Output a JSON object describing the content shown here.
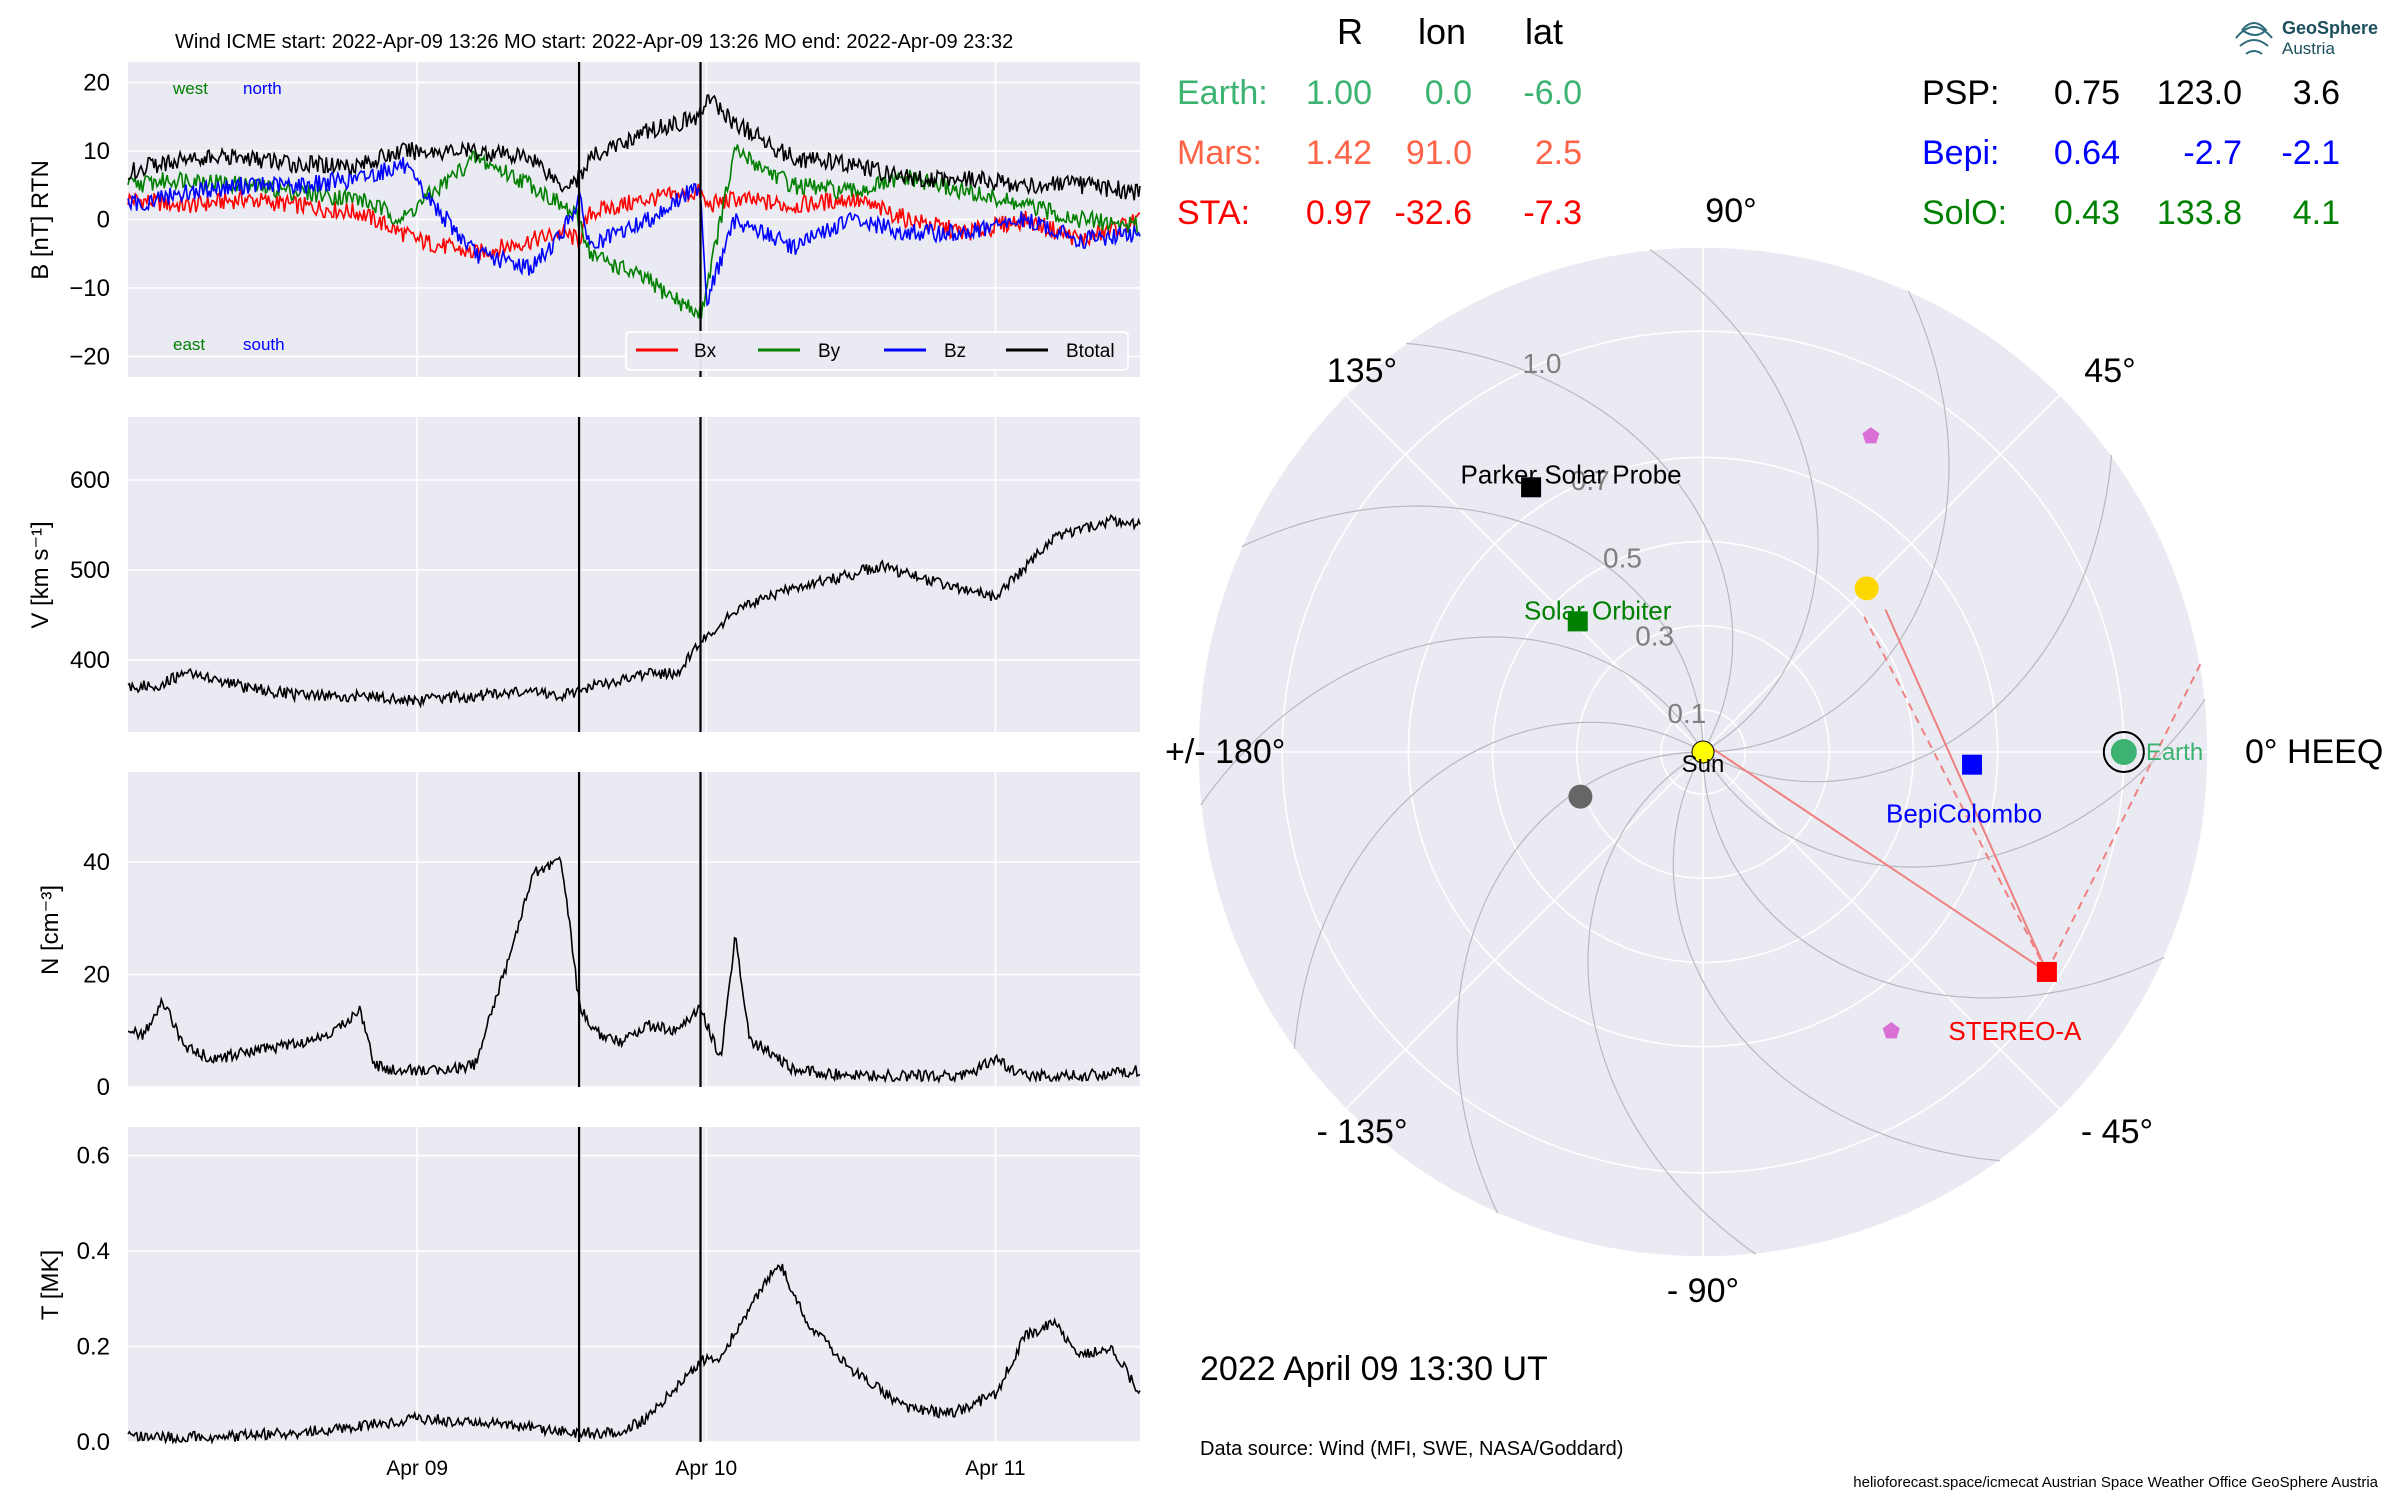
{
  "header": {
    "title": "Wind    ICME start: 2022-Apr-09 13:26   MO start: 2022-Apr-09 13:26   MO end: 2022-Apr-09 23:32"
  },
  "logo": {
    "line1": "GeoSphere",
    "line2": "Austria"
  },
  "footer": {
    "datetime": "2022 April 09  13:30 UT",
    "source": "Data source: Wind (MFI, SWE, NASA/Goddard)",
    "credits": "helioforecast.space/icmecat   Austrian Space Weather Office   GeoSphere Austria"
  },
  "table": {
    "headers": [
      "R",
      "lon",
      "lat"
    ],
    "left_rows": [
      {
        "name": "Earth:",
        "r": "1.00",
        "lon": "0.0",
        "lat": "-6.0",
        "color": "#3cb371"
      },
      {
        "name": "Mars:",
        "r": "1.42",
        "lon": "91.0",
        "lat": "2.5",
        "color": "#ff6347"
      },
      {
        "name": "STA:",
        "r": "0.97",
        "lon": "-32.6",
        "lat": "-7.3",
        "color": "#ff0000"
      }
    ],
    "right_rows": [
      {
        "name": "PSP:",
        "r": "0.75",
        "lon": "123.0",
        "lat": "3.6",
        "color": "#000000"
      },
      {
        "name": "Bepi:",
        "r": "0.64",
        "lon": "-2.7",
        "lat": "-2.1",
        "color": "#0000ff"
      },
      {
        "name": "SolO:",
        "r": "0.43",
        "lon": "133.8",
        "lat": "4.1",
        "color": "#008000"
      }
    ]
  },
  "chart_data": [
    {
      "type": "line",
      "panel": "magnetic-field",
      "ylabel": "B [nT] RTN",
      "ylim": [
        -23,
        23
      ],
      "yticks": [
        20,
        10,
        0,
        -10,
        -20
      ],
      "ytick_labels": [
        "20",
        "10",
        "0",
        "−10",
        "−20"
      ],
      "corner_labels": [
        {
          "text": "west",
          "color": "#008000",
          "corner": "top-left"
        },
        {
          "text": "north",
          "color": "#0000ff",
          "corner": "top-left"
        },
        {
          "text": "east",
          "color": "#008000",
          "corner": "bottom-left"
        },
        {
          "text": "south",
          "color": "#0000ff",
          "corner": "bottom-left"
        }
      ],
      "legend_position": "lower-right",
      "x_unit": "days since 2022-Apr-08 00:00",
      "x": [
        0.0,
        0.2,
        0.4,
        0.6,
        0.8,
        0.95,
        1.0,
        1.2,
        1.4,
        1.5,
        1.56,
        1.6,
        1.8,
        1.98,
        2.0,
        2.1,
        2.3,
        2.5,
        2.7,
        2.9,
        3.1,
        3.3,
        3.5
      ],
      "series": [
        {
          "name": "Bx",
          "color": "#ff0000",
          "values": [
            3,
            2,
            3,
            2,
            1,
            -2,
            -3,
            -5,
            -3,
            -2,
            -3,
            1,
            3,
            4,
            2,
            3,
            2,
            3,
            0,
            -2,
            0,
            -3,
            0
          ]
        },
        {
          "name": "By",
          "color": "#008000",
          "values": [
            5,
            6,
            5,
            4,
            3,
            0,
            2,
            9,
            5,
            2,
            0,
            -5,
            -9,
            -14,
            -10,
            10,
            5,
            4,
            6,
            4,
            2,
            0,
            -1
          ]
        },
        {
          "name": "Bz",
          "color": "#0000ff",
          "values": [
            2,
            4,
            5,
            5,
            6,
            8,
            5,
            -5,
            -7,
            -2,
            3,
            -4,
            0,
            5,
            -12,
            0,
            -4,
            0,
            -2,
            -2,
            0,
            -3,
            -2
          ]
        },
        {
          "name": "Btotal",
          "color": "#000000",
          "values": [
            7,
            9,
            9,
            8,
            8,
            10,
            10,
            10,
            9,
            5,
            6,
            9,
            13,
            15,
            18,
            14,
            9,
            8,
            6,
            6,
            5,
            5,
            4
          ]
        }
      ]
    },
    {
      "type": "line",
      "panel": "speed",
      "ylabel": "V [km s⁻¹]",
      "ylim": [
        320,
        670
      ],
      "yticks": [
        400,
        500,
        600
      ],
      "ytick_labels": [
        "400",
        "500",
        "600"
      ],
      "x_unit": "days since 2022-Apr-08 00:00",
      "x": [
        0.0,
        0.1,
        0.2,
        0.4,
        0.6,
        0.8,
        1.0,
        1.2,
        1.4,
        1.5,
        1.56,
        1.6,
        1.8,
        1.9,
        1.98,
        2.1,
        2.3,
        2.5,
        2.6,
        2.8,
        3.0,
        3.2,
        3.4,
        3.5
      ],
      "series": [
        {
          "name": "V",
          "color": "#000000",
          "values": [
            370,
            372,
            385,
            370,
            360,
            360,
            355,
            360,
            365,
            360,
            365,
            370,
            385,
            385,
            420,
            455,
            480,
            495,
            505,
            485,
            470,
            535,
            555,
            550
          ]
        }
      ]
    },
    {
      "type": "line",
      "panel": "density",
      "ylabel": "N [cm⁻³]",
      "ylim": [
        0,
        56
      ],
      "yticks": [
        0,
        20,
        40
      ],
      "ytick_labels": [
        "0",
        "20",
        "40"
      ],
      "x_unit": "days since 2022-Apr-08 00:00",
      "x": [
        0.0,
        0.05,
        0.12,
        0.2,
        0.3,
        0.5,
        0.7,
        0.8,
        0.85,
        0.9,
        1.0,
        1.1,
        1.2,
        1.3,
        1.4,
        1.5,
        1.56,
        1.6,
        1.7,
        1.8,
        1.9,
        1.98,
        2.05,
        2.1,
        2.15,
        2.2,
        2.3,
        2.5,
        2.7,
        2.9,
        3.0,
        3.1,
        3.3,
        3.5
      ],
      "series": [
        {
          "name": "N",
          "color": "#000000",
          "values": [
            10,
            9,
            15,
            7,
            5,
            7,
            9,
            14,
            4,
            3,
            3,
            3,
            4,
            20,
            38,
            40,
            15,
            10,
            8,
            11,
            10,
            14,
            5,
            27,
            8,
            7,
            3,
            2,
            2,
            2,
            5,
            2,
            2,
            3
          ]
        }
      ]
    },
    {
      "type": "line",
      "panel": "temperature",
      "ylabel": "T [MK]",
      "ylim": [
        0,
        0.66
      ],
      "yticks": [
        0.0,
        0.2,
        0.4,
        0.6
      ],
      "ytick_labels": [
        "0.0",
        "0.2",
        "0.4",
        "0.6"
      ],
      "x_unit": "days since 2022-Apr-08 00:00",
      "x": [
        0.0,
        0.3,
        0.6,
        0.9,
        1.0,
        1.2,
        1.4,
        1.56,
        1.7,
        1.8,
        1.9,
        1.98,
        2.05,
        2.15,
        2.25,
        2.35,
        2.5,
        2.7,
        2.85,
        3.0,
        3.1,
        3.2,
        3.3,
        3.4,
        3.5
      ],
      "series": [
        {
          "name": "T",
          "color": "#000000",
          "values": [
            0.01,
            0.01,
            0.02,
            0.04,
            0.05,
            0.04,
            0.03,
            0.02,
            0.02,
            0.05,
            0.12,
            0.17,
            0.18,
            0.28,
            0.38,
            0.25,
            0.15,
            0.07,
            0.06,
            0.1,
            0.22,
            0.25,
            0.18,
            0.2,
            0.1
          ]
        }
      ]
    },
    {
      "type": "scatter",
      "panel": "polar-position-map",
      "theta_labels": [
        "0° HEEQ",
        "45°",
        "90°",
        "135°",
        "+/- 180°",
        "- 135°",
        "- 90°",
        "- 45°"
      ],
      "r_labels": [
        "0.1",
        "0.3",
        "0.5",
        "0.7",
        "1.0"
      ],
      "rlim": [
        0,
        1.2
      ],
      "points": [
        {
          "label": "Sun",
          "r": 0.0,
          "lon": 0,
          "color": "#ffff00",
          "marker": "circle"
        },
        {
          "label": "Earth",
          "r": 1.0,
          "lon": 0.0,
          "color": "#3cb371",
          "marker": "circle"
        },
        {
          "label": "STEREO-A",
          "r": 0.97,
          "lon": -32.6,
          "color": "#ff0000",
          "marker": "square"
        },
        {
          "label": "BepiColombo",
          "r": 0.64,
          "lon": -2.7,
          "color": "#0000ff",
          "marker": "square"
        },
        {
          "label": "Parker Solar Probe",
          "r": 0.75,
          "lon": 123.0,
          "color": "#000000",
          "marker": "square"
        },
        {
          "label": "Solar Orbiter",
          "r": 0.43,
          "lon": 133.8,
          "color": "#008000",
          "marker": "square"
        },
        {
          "label": "",
          "r": 0.55,
          "lon": 45,
          "color": "#ffd700",
          "marker": "circle"
        },
        {
          "label": "",
          "r": 0.31,
          "lon": -160,
          "color": "#666666",
          "marker": "circle"
        },
        {
          "label": "",
          "r": 0.85,
          "lon": 62,
          "color": "#da70d6",
          "marker": "pentagon"
        },
        {
          "label": "",
          "r": 0.8,
          "lon": -56,
          "color": "#da70d6",
          "marker": "pentagon"
        }
      ]
    }
  ],
  "colors": {
    "panel_bg": "#eaeaf2",
    "grid": "#ffffff",
    "event_line": "#000000",
    "fov": "#f08080"
  }
}
